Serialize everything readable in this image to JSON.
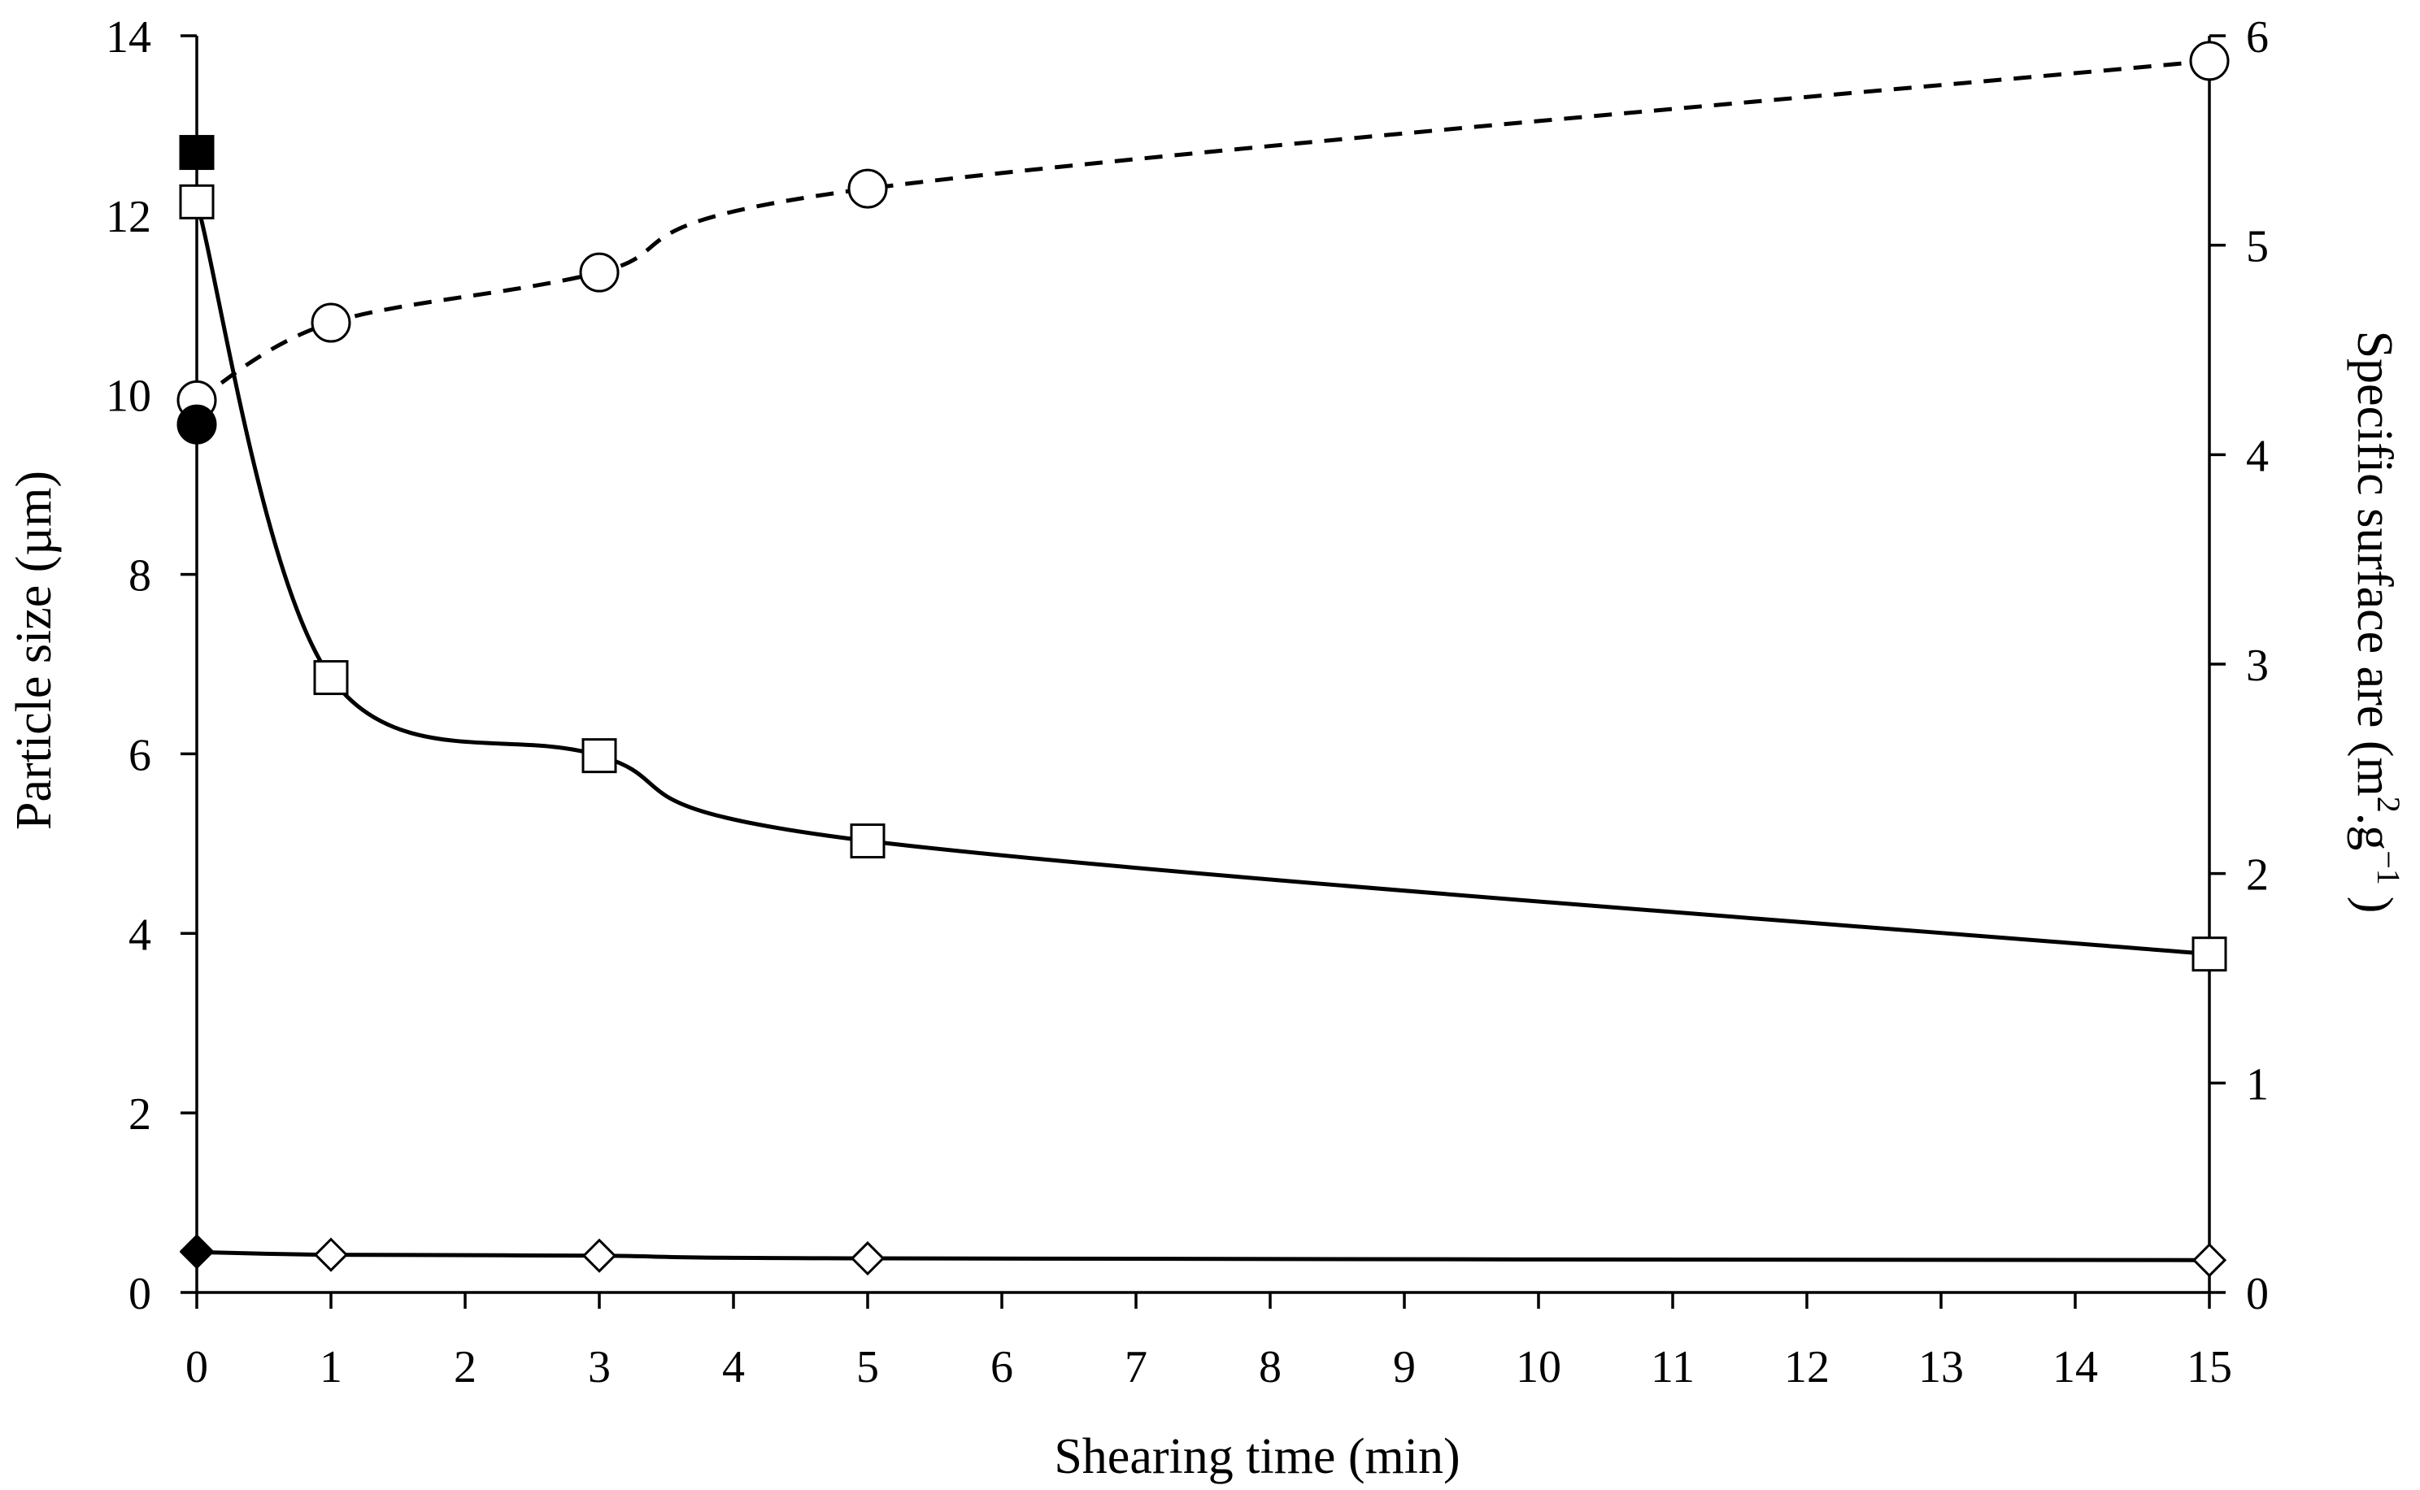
{
  "chart_data": {
    "type": "line",
    "x_axis": {
      "label": "Shearing time (min)",
      "range": [
        0,
        15
      ],
      "ticks": [
        "0",
        "1",
        "2",
        "3",
        "4",
        "5",
        "6",
        "7",
        "8",
        "9",
        "10",
        "11",
        "12",
        "13",
        "14",
        "15"
      ]
    },
    "y_axis_left": {
      "label": "Particle size (µm)",
      "range": [
        0,
        14
      ],
      "ticks": [
        "0",
        "2",
        "4",
        "6",
        "8",
        "10",
        "12",
        "14"
      ]
    },
    "y_axis_right": {
      "label_main": "Specific surface are (m",
      "label_sup1": "2",
      "label_mid": ".g",
      "label_sup2": "−1",
      "label_end": ")",
      "range": [
        0,
        6
      ],
      "ticks": [
        "0",
        "1",
        "2",
        "3",
        "4",
        "5",
        "6"
      ]
    },
    "grid": false,
    "legend": "none",
    "series": [
      {
        "axis": "left",
        "marker": "square-open",
        "line": "solid",
        "color": "#000000",
        "x": [
          0,
          1,
          3,
          5,
          15
        ],
        "y": [
          12.15,
          6.85,
          5.98,
          5.03,
          3.77
        ]
      },
      {
        "axis": "left",
        "marker": "diamond-open",
        "line": "solid",
        "color": "#000000",
        "x": [
          0,
          1,
          3,
          5,
          15
        ],
        "y": [
          0.45,
          0.42,
          0.41,
          0.38,
          0.36
        ]
      },
      {
        "axis": "right",
        "marker": "circle-open",
        "line": "dashed",
        "color": "#000000",
        "x": [
          0,
          1,
          3,
          5,
          15
        ],
        "y": [
          4.26,
          4.63,
          4.87,
          5.27,
          5.88
        ]
      }
    ],
    "points": [
      {
        "axis": "left",
        "marker": "square-filled",
        "x": 0,
        "y": 12.7
      },
      {
        "axis": "left",
        "marker": "circle-filled",
        "x": 0,
        "y": 9.67
      },
      {
        "axis": "left",
        "marker": "diamond-filled",
        "x": 0,
        "y": 0.46
      }
    ]
  }
}
